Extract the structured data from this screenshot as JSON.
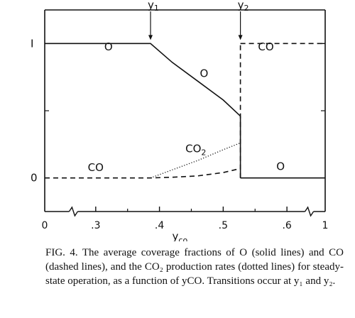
{
  "chart_data": {
    "type": "line",
    "xlabel": "yco",
    "ylabel": "",
    "xlim": [
      0.22,
      0.66
    ],
    "ylim": [
      -0.25,
      1.25
    ],
    "x_tick_labels": [
      {
        "value": 0.22,
        "label": "0"
      },
      {
        "value": 0.3,
        "label": ".3"
      },
      {
        "value": 0.4,
        "label": ".4"
      },
      {
        "value": 0.5,
        "label": ".5"
      },
      {
        "value": 0.6,
        "label": ".6"
      },
      {
        "value": 0.66,
        "label": "1"
      }
    ],
    "y_tick_labels": [
      {
        "value": 0,
        "label": "0"
      },
      {
        "value": 1,
        "label": "I"
      }
    ],
    "transitions": [
      {
        "name": "y1",
        "x": 0.386
      },
      {
        "name": "y2",
        "x": 0.527
      }
    ],
    "series": [
      {
        "name": "O",
        "style": "solid",
        "segments": [
          [
            [
              0.22,
              1.0
            ],
            [
              0.386,
              1.0
            ],
            [
              0.42,
              0.86
            ],
            [
              0.46,
              0.72
            ],
            [
              0.5,
              0.58
            ],
            [
              0.527,
              0.46
            ]
          ],
          [
            [
              0.527,
              0.46
            ],
            [
              0.527,
              0.0
            ]
          ],
          [
            [
              0.527,
              0.0
            ],
            [
              0.66,
              0.0
            ]
          ]
        ]
      },
      {
        "name": "CO",
        "style": "dashed",
        "segments": [
          [
            [
              0.22,
              0.0
            ],
            [
              0.386,
              0.0
            ],
            [
              0.42,
              0.005
            ],
            [
              0.46,
              0.015
            ],
            [
              0.5,
              0.04
            ],
            [
              0.527,
              0.07
            ]
          ],
          [
            [
              0.527,
              0.0
            ],
            [
              0.527,
              1.0
            ]
          ],
          [
            [
              0.527,
              1.0
            ],
            [
              0.66,
              1.0
            ]
          ]
        ]
      },
      {
        "name": "CO2",
        "style": "dotted",
        "segments": [
          [
            [
              0.386,
              0.0
            ],
            [
              0.42,
              0.06
            ],
            [
              0.46,
              0.13
            ],
            [
              0.5,
              0.21
            ],
            [
              0.527,
              0.26
            ]
          ]
        ]
      }
    ],
    "annotations": [
      {
        "text": "O",
        "x": 0.32,
        "y": 0.95
      },
      {
        "text": "O",
        "x": 0.47,
        "y": 0.75
      },
      {
        "text": "CO",
        "x": 0.3,
        "y": 0.05
      },
      {
        "text": "CO2",
        "x": 0.457,
        "y": 0.19
      },
      {
        "text": "CO",
        "x": 0.567,
        "y": 0.95
      },
      {
        "text": "O",
        "x": 0.59,
        "y": 0.06
      }
    ]
  },
  "caption": {
    "text": "FIG. 4. The average coverage fractions of O (solid lines) and CO (dashed lines), and the CO₂ production rates (dotted lines) for steady-state operation, as a function of yCO. Transitions occur at y₁ and y₂."
  }
}
